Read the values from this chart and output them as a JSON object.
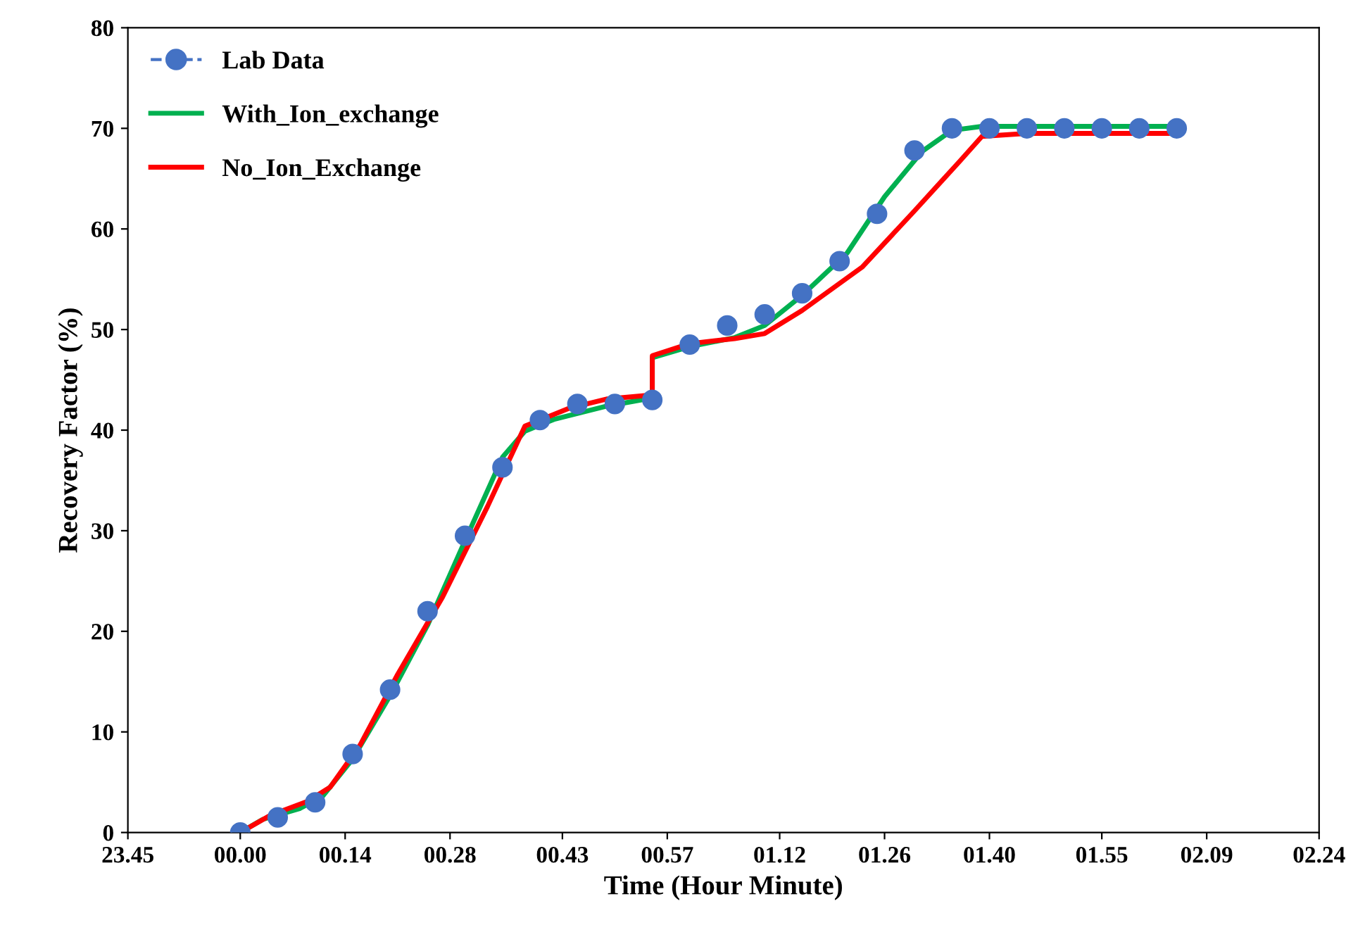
{
  "chart_data": {
    "type": "line",
    "xlabel": "Time (Hour Minute)",
    "ylabel": "Recovery Factor (%)",
    "xlim": [
      "2000-01-01T23:45",
      "2000-01-02T02:24"
    ],
    "ylim": [
      0,
      80
    ],
    "xticks": [
      {
        "value": "2000-01-01T23:45",
        "label": "23.45"
      },
      {
        "value": "2000-01-02T00:00",
        "label": "00.00"
      },
      {
        "value": "2000-01-02T00:14",
        "label": "00.14"
      },
      {
        "value": "2000-01-02T00:28",
        "label": "00.28"
      },
      {
        "value": "2000-01-02T00:43",
        "label": "00.43"
      },
      {
        "value": "2000-01-02T00:57",
        "label": "00.57"
      },
      {
        "value": "2000-01-02T01:12",
        "label": "01.12"
      },
      {
        "value": "2000-01-02T01:26",
        "label": "01.26"
      },
      {
        "value": "2000-01-02T01:40",
        "label": "01.40"
      },
      {
        "value": "2000-01-02T01:55",
        "label": "01.55"
      },
      {
        "value": "2000-01-02T02:09",
        "label": "02.09"
      },
      {
        "value": "2000-01-02T02:24",
        "label": "02.24"
      }
    ],
    "yticks": [
      0,
      10,
      20,
      30,
      40,
      50,
      60,
      70,
      80
    ],
    "grid": false,
    "legend": "top left",
    "series": [
      {
        "name": "Lab Data",
        "type": "scatter",
        "color": "#4472c4",
        "marker": "circle",
        "x": [
          "2000-01-02T00:00",
          "2000-01-02T00:05",
          "2000-01-02T00:10",
          "2000-01-02T00:15",
          "2000-01-02T00:20",
          "2000-01-02T00:25",
          "2000-01-02T00:30",
          "2000-01-02T00:35",
          "2000-01-02T00:40",
          "2000-01-02T00:45",
          "2000-01-02T00:50",
          "2000-01-02T00:55",
          "2000-01-02T01:00",
          "2000-01-02T01:05",
          "2000-01-02T01:10",
          "2000-01-02T01:15",
          "2000-01-02T01:20",
          "2000-01-02T01:25",
          "2000-01-02T01:30",
          "2000-01-02T01:35",
          "2000-01-02T01:40",
          "2000-01-02T01:45",
          "2000-01-02T01:50",
          "2000-01-02T01:55",
          "2000-01-02T02:00",
          "2000-01-02T02:05"
        ],
        "values": [
          0,
          1.5,
          3,
          7.8,
          14.2,
          22,
          29.5,
          36.3,
          41,
          42.6,
          42.6,
          43,
          48.5,
          50.4,
          51.5,
          53.6,
          56.8,
          61.5,
          67.8,
          70,
          70,
          70,
          70,
          70,
          70,
          70
        ]
      },
      {
        "name": "With_Ion_exchange",
        "color": "#00b050",
        "x": [
          "2000-01-02T00:00",
          "2000-01-02T00:03",
          "2000-01-02T00:08",
          "2000-01-02T00:11",
          "2000-01-02T00:15",
          "2000-01-02T00:20",
          "2000-01-02T00:25",
          "2000-01-02T00:30",
          "2000-01-02T00:35",
          "2000-01-02T00:38",
          "2000-01-02T00:42",
          "2000-01-02T00:49",
          "2000-01-02T00:55",
          "2000-01-02T00:55",
          "2000-01-02T01:00",
          "2000-01-02T01:06",
          "2000-01-02T01:10",
          "2000-01-02T01:15",
          "2000-01-02T01:21",
          "2000-01-02T01:26",
          "2000-01-02T01:31",
          "2000-01-02T01:35",
          "2000-01-02T01:39",
          "2000-01-02T02:05"
        ],
        "values": [
          0,
          1.3,
          2.4,
          3.6,
          7.3,
          13.6,
          20.6,
          29,
          37.3,
          39.9,
          41.1,
          42.4,
          43.2,
          47.2,
          48.3,
          49.2,
          50.4,
          53.4,
          57.6,
          63.2,
          67.7,
          69.8,
          70.2,
          70.2
        ]
      },
      {
        "name": "No_Ion_Exchange",
        "color": "#ff0000",
        "x": [
          "2000-01-02T00:00",
          "2000-01-02T00:04",
          "2000-01-02T00:09",
          "2000-01-02T00:12",
          "2000-01-02T00:16",
          "2000-01-02T00:21",
          "2000-01-02T00:27",
          "2000-01-02T00:33",
          "2000-01-02T00:38",
          "2000-01-02T00:44",
          "2000-01-02T00:49",
          "2000-01-02T00:55",
          "2000-01-02T00:55",
          "2000-01-02T01:00",
          "2000-01-02T01:06",
          "2000-01-02T01:10",
          "2000-01-02T01:15",
          "2000-01-02T01:23",
          "2000-01-02T01:30",
          "2000-01-02T01:36",
          "2000-01-02T01:39",
          "2000-01-02T01:45",
          "2000-01-02T02:05"
        ],
        "values": [
          0,
          1.7,
          3.1,
          4.5,
          8.7,
          15.7,
          23.4,
          32.4,
          40.4,
          42.2,
          43.1,
          43.5,
          47.4,
          48.6,
          49.1,
          49.6,
          51.9,
          56.2,
          61.8,
          66.7,
          69.2,
          69.5,
          69.5
        ]
      }
    ]
  }
}
